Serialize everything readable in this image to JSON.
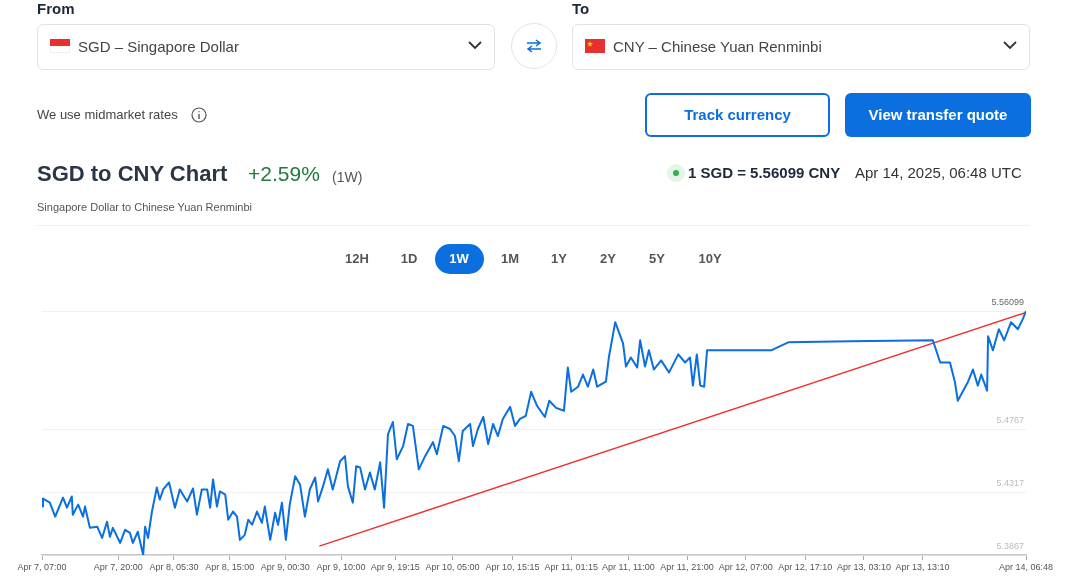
{
  "chart_data": {
    "type": "line",
    "title": "SGD to CNY Chart",
    "subtitle": "Singapore Dollar to Chinese Yuan Renminbi",
    "annotations": [
      "From",
      "SGD – Singapore Dollar",
      "To",
      "CNY – Chinese Yuan Renminbi",
      "We use midmarket rates",
      "Track currency",
      "View transfer quote",
      "+2.59%",
      "(1W)",
      "1 SGD = 5.56099 CNY",
      "Apr 14, 2025, 06:48 UTC",
      "12H",
      "1D",
      "1W",
      "1M",
      "1Y",
      "2Y",
      "5Y",
      "10Y"
    ],
    "x": [
      "2025-04-07T07:00",
      "2025-04-07T07:10",
      "2025-04-07T08:20",
      "2025-04-07T09:15",
      "2025-04-07T10:35",
      "2025-04-07T11:15",
      "2025-04-07T12:05",
      "2025-04-07T12:15",
      "2025-04-07T13:10",
      "2025-04-07T14:00",
      "2025-04-07T14:20",
      "2025-04-07T15:10",
      "2025-04-07T16:25",
      "2025-04-07T17:15",
      "2025-04-07T18:05",
      "2025-04-07T18:35",
      "2025-04-07T19:05",
      "2025-04-07T20:20",
      "2025-04-07T21:10",
      "2025-04-07T22:00",
      "2025-04-07T22:30",
      "2025-04-07T23:20",
      "2025-04-08T00:15",
      "2025-04-08T00:35",
      "2025-04-08T01:05",
      "2025-04-08T01:45",
      "2025-04-08T02:35",
      "2025-04-08T03:05",
      "2025-04-08T03:40",
      "2025-04-08T04:40",
      "2025-04-08T05:40",
      "2025-04-08T06:30",
      "2025-04-08T07:45",
      "2025-04-08T08:45",
      "2025-04-08T09:25",
      "2025-04-08T10:15",
      "2025-04-08T11:10",
      "2025-04-08T11:40",
      "2025-04-08T12:10",
      "2025-04-08T12:50",
      "2025-04-08T13:20",
      "2025-04-08T14:15",
      "2025-04-08T14:45",
      "2025-04-08T15:35",
      "2025-04-08T16:15",
      "2025-04-08T16:45",
      "2025-04-08T17:35",
      "2025-04-08T18:10",
      "2025-04-08T18:50",
      "2025-04-08T19:40",
      "2025-04-08T20:30",
      "2025-04-08T21:00",
      "2025-04-08T21:55",
      "2025-04-08T22:45",
      "2025-04-08T23:15",
      "2025-04-08T23:55",
      "2025-04-09T00:35",
      "2025-04-09T01:15",
      "2025-04-09T02:10",
      "2025-04-09T03:00",
      "2025-04-09T03:50",
      "2025-04-09T04:40",
      "2025-04-09T05:35",
      "2025-04-09T06:05",
      "2025-04-09T06:55",
      "2025-04-09T07:45",
      "2025-04-09T08:35",
      "2025-04-09T09:50",
      "2025-04-09T10:40",
      "2025-04-09T11:10",
      "2025-04-09T12:00",
      "2025-04-09T12:35",
      "2025-04-09T13:15",
      "2025-04-09T14:05",
      "2025-04-09T14:55",
      "2025-04-09T15:45",
      "2025-04-09T16:40",
      "2025-04-09T17:20",
      "2025-04-09T18:00",
      "2025-04-09T18:50",
      "2025-04-09T19:30",
      "2025-04-09T20:35",
      "2025-04-09T21:25",
      "2025-04-09T22:15",
      "2025-04-09T23:15",
      "2025-04-10T00:20",
      "2025-04-10T01:40",
      "2025-04-10T02:20",
      "2025-04-10T03:25",
      "2025-04-10T04:35",
      "2025-04-10T05:25",
      "2025-04-10T06:05",
      "2025-04-10T06:45",
      "2025-04-10T08:00",
      "2025-04-10T08:30",
      "2025-04-10T09:20",
      "2025-04-10T10:15",
      "2025-04-10T11:05",
      "2025-04-10T11:55",
      "2025-04-10T12:45",
      "2025-04-10T13:35",
      "2025-04-10T14:50",
      "2025-04-10T15:40",
      "2025-04-10T16:30",
      "2025-04-10T17:30",
      "2025-04-10T18:25",
      "2025-04-10T19:25",
      "2025-04-10T20:45",
      "2025-04-10T21:30",
      "2025-04-10T22:40",
      "2025-04-11T00:00",
      "2025-04-11T00:40",
      "2025-04-11T01:15",
      "2025-04-11T02:25",
      "2025-04-11T03:15",
      "2025-04-11T04:05",
      "2025-04-11T05:00",
      "2025-04-11T05:40",
      "2025-04-11T07:10",
      "2025-04-11T07:40",
      "2025-04-11T08:45",
      "2025-04-11T10:05",
      "2025-04-11T10:35",
      "2025-04-11T11:25",
      "2025-04-11T12:30",
      "2025-04-11T13:00",
      "2025-04-11T13:50",
      "2025-04-11T14:30",
      "2025-04-11T15:20",
      "2025-04-11T16:35",
      "2025-04-11T17:55",
      "2025-04-11T19:30",
      "2025-04-11T20:40",
      "2025-04-11T21:30",
      "2025-04-11T22:00",
      "2025-04-11T22:40",
      "2025-04-11T23:15",
      "2025-04-11T23:55",
      "2025-04-12T00:25",
      "2025-04-12T07:15",
      "2025-04-12T11:20",
      "2025-04-12T14:15",
      "2025-04-13T00:45",
      "2025-04-13T14:55",
      "2025-04-13T16:10",
      "2025-04-13T17:50",
      "2025-04-13T18:40",
      "2025-04-13T19:10",
      "2025-04-13T20:55",
      "2025-04-13T21:45",
      "2025-04-13T22:35",
      "2025-04-13T23:10",
      "2025-04-14T00:10",
      "2025-04-14T00:20",
      "2025-04-14T01:10",
      "2025-04-14T02:10",
      "2025-04-14T03:05",
      "2025-04-14T04:15",
      "2025-04-14T05:25",
      "2025-04-14T06:15",
      "2025-04-14T06:48"
    ],
    "series": [
      {
        "color": "#0b6fdf",
        "values": [
          5.4213,
          5.427,
          5.4241,
          5.4141,
          5.4277,
          5.4205,
          5.4285,
          5.4155,
          5.4227,
          5.4141,
          5.4213,
          5.4061,
          5.4069,
          5.3989,
          5.4105,
          5.3997,
          5.4061,
          5.3953,
          5.4047,
          5.4025,
          5.3953,
          5.4033,
          5.3867,
          5.4069,
          5.3989,
          5.4177,
          5.4349,
          5.4263,
          5.4335,
          5.4385,
          5.4205,
          5.4335,
          5.4249,
          5.4342,
          5.4155,
          5.4335,
          5.4335,
          5.4205,
          5.4407,
          5.4213,
          5.4321,
          5.4299,
          5.4119,
          5.4177,
          5.4141,
          5.3975,
          5.4011,
          5.4119,
          5.4083,
          5.4177,
          5.4097,
          5.4213,
          5.3975,
          5.4169,
          5.4083,
          5.4241,
          5.3975,
          5.4227,
          5.4429,
          5.4371,
          5.4141,
          5.4335,
          5.4421,
          5.4249,
          5.4357,
          5.4479,
          5.4335,
          5.4537,
          5.4573,
          5.4357,
          5.4241,
          5.4501,
          5.4493,
          5.4335,
          5.4457,
          5.4335,
          5.4529,
          5.4205,
          5.4731,
          5.4817,
          5.4551,
          5.4645,
          5.4803,
          5.4789,
          5.4479,
          5.4573,
          5.4673,
          5.4587,
          5.4789,
          5.4767,
          5.4717,
          5.4537,
          5.4753,
          5.4803,
          5.4645,
          5.4767,
          5.4853,
          5.4659,
          5.4803,
          5.4717,
          5.4839,
          5.4925,
          5.4789,
          5.4839,
          5.4861,
          5.5033,
          5.4933,
          5.4853,
          5.4969,
          5.4918,
          5.4897,
          5.5206,
          5.5033,
          5.5069,
          5.5156,
          5.5069,
          5.5192,
          5.5069,
          5.5105,
          5.5278,
          5.553,
          5.5379,
          5.5213,
          5.5278,
          5.5206,
          5.5401,
          5.5213,
          5.5329,
          5.5192,
          5.5257,
          5.517,
          5.53,
          5.5242,
          5.5278,
          5.5077,
          5.53,
          5.5077,
          5.5069,
          5.5329,
          5.5329,
          5.5329,
          5.5386,
          5.5393,
          5.5401,
          5.5242,
          5.5242,
          5.5105,
          5.4969,
          5.5105,
          5.5192,
          5.5077,
          5.5156,
          5.5041,
          5.5429,
          5.5329,
          5.548,
          5.5401,
          5.553,
          5.548,
          5.5552,
          5.56099
        ]
      },
      {
        "type": "line",
        "color": "#f03030",
        "x": [
          "2025-04-09T06:25",
          "2025-04-14T06:48"
        ],
        "values": [
          5.3932,
          5.56
        ]
      }
    ],
    "xlim": [
      "2025-04-07T07:00",
      "2025-04-14T06:48"
    ],
    "xticks": [
      {
        "value": "2025-04-07T07:00",
        "label": "Apr 7, 07:00"
      },
      {
        "value": "2025-04-07T20:00",
        "label": "Apr 7, 20:00"
      },
      {
        "value": "2025-04-08T05:30",
        "label": "Apr 8, 05:30"
      },
      {
        "value": "2025-04-08T15:00",
        "label": "Apr 8, 15:00"
      },
      {
        "value": "2025-04-09T00:30",
        "label": "Apr 9, 00:30"
      },
      {
        "value": "2025-04-09T10:00",
        "label": "Apr 9, 10:00"
      },
      {
        "value": "2025-04-09T19:15",
        "label": "Apr 9, 19:15"
      },
      {
        "value": "2025-04-10T05:00",
        "label": "Apr 10, 05:00"
      },
      {
        "value": "2025-04-10T15:15",
        "label": "Apr 10, 15:15"
      },
      {
        "value": "2025-04-11T01:15",
        "label": "Apr 11, 01:15"
      },
      {
        "value": "2025-04-11T11:00",
        "label": "Apr 11, 11:00"
      },
      {
        "value": "2025-04-11T21:00",
        "label": "Apr 11, 21:00"
      },
      {
        "value": "2025-04-12T07:00",
        "label": "Apr 12, 07:00"
      },
      {
        "value": "2025-04-12T17:10",
        "label": "Apr 12, 17:10"
      },
      {
        "value": "2025-04-13T03:10",
        "label": "Apr 13, 03:10"
      },
      {
        "value": "2025-04-13T13:10",
        "label": "Apr 13, 13:10"
      },
      {
        "value": "2025-04-14T06:48",
        "label": "Apr 14, 06:48"
      }
    ],
    "ylim": [
      5.3867,
      5.56099
    ],
    "yticks": [
      5.3867,
      5.4317,
      5.4767,
      5.56099
    ],
    "grid": "y",
    "marker": "none",
    "line_style": "solid",
    "legend": false
  }
}
